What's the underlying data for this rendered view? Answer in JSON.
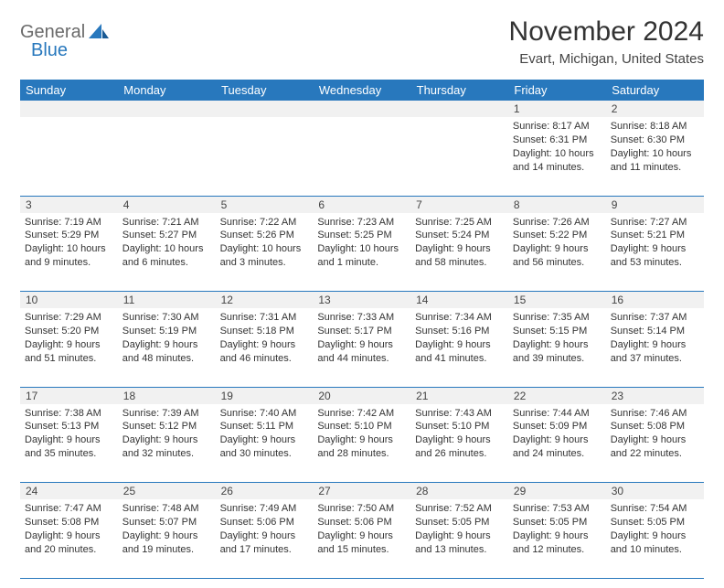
{
  "brand": {
    "part1": "General",
    "part2": "Blue"
  },
  "title": "November 2024",
  "location": "Evart, Michigan, United States",
  "columns": [
    "Sunday",
    "Monday",
    "Tuesday",
    "Wednesday",
    "Thursday",
    "Friday",
    "Saturday"
  ],
  "colors": {
    "header_bg": "#2878bd",
    "header_fg": "#ffffff",
    "daynum_bg": "#f1f1f1",
    "text": "#333333",
    "rule": "#2878bd"
  },
  "weeks": [
    [
      {
        "n": "",
        "sr": "",
        "ss": "",
        "d1": "",
        "d2": ""
      },
      {
        "n": "",
        "sr": "",
        "ss": "",
        "d1": "",
        "d2": ""
      },
      {
        "n": "",
        "sr": "",
        "ss": "",
        "d1": "",
        "d2": ""
      },
      {
        "n": "",
        "sr": "",
        "ss": "",
        "d1": "",
        "d2": ""
      },
      {
        "n": "",
        "sr": "",
        "ss": "",
        "d1": "",
        "d2": ""
      },
      {
        "n": "1",
        "sr": "Sunrise: 8:17 AM",
        "ss": "Sunset: 6:31 PM",
        "d1": "Daylight: 10 hours",
        "d2": "and 14 minutes."
      },
      {
        "n": "2",
        "sr": "Sunrise: 8:18 AM",
        "ss": "Sunset: 6:30 PM",
        "d1": "Daylight: 10 hours",
        "d2": "and 11 minutes."
      }
    ],
    [
      {
        "n": "3",
        "sr": "Sunrise: 7:19 AM",
        "ss": "Sunset: 5:29 PM",
        "d1": "Daylight: 10 hours",
        "d2": "and 9 minutes."
      },
      {
        "n": "4",
        "sr": "Sunrise: 7:21 AM",
        "ss": "Sunset: 5:27 PM",
        "d1": "Daylight: 10 hours",
        "d2": "and 6 minutes."
      },
      {
        "n": "5",
        "sr": "Sunrise: 7:22 AM",
        "ss": "Sunset: 5:26 PM",
        "d1": "Daylight: 10 hours",
        "d2": "and 3 minutes."
      },
      {
        "n": "6",
        "sr": "Sunrise: 7:23 AM",
        "ss": "Sunset: 5:25 PM",
        "d1": "Daylight: 10 hours",
        "d2": "and 1 minute."
      },
      {
        "n": "7",
        "sr": "Sunrise: 7:25 AM",
        "ss": "Sunset: 5:24 PM",
        "d1": "Daylight: 9 hours",
        "d2": "and 58 minutes."
      },
      {
        "n": "8",
        "sr": "Sunrise: 7:26 AM",
        "ss": "Sunset: 5:22 PM",
        "d1": "Daylight: 9 hours",
        "d2": "and 56 minutes."
      },
      {
        "n": "9",
        "sr": "Sunrise: 7:27 AM",
        "ss": "Sunset: 5:21 PM",
        "d1": "Daylight: 9 hours",
        "d2": "and 53 minutes."
      }
    ],
    [
      {
        "n": "10",
        "sr": "Sunrise: 7:29 AM",
        "ss": "Sunset: 5:20 PM",
        "d1": "Daylight: 9 hours",
        "d2": "and 51 minutes."
      },
      {
        "n": "11",
        "sr": "Sunrise: 7:30 AM",
        "ss": "Sunset: 5:19 PM",
        "d1": "Daylight: 9 hours",
        "d2": "and 48 minutes."
      },
      {
        "n": "12",
        "sr": "Sunrise: 7:31 AM",
        "ss": "Sunset: 5:18 PM",
        "d1": "Daylight: 9 hours",
        "d2": "and 46 minutes."
      },
      {
        "n": "13",
        "sr": "Sunrise: 7:33 AM",
        "ss": "Sunset: 5:17 PM",
        "d1": "Daylight: 9 hours",
        "d2": "and 44 minutes."
      },
      {
        "n": "14",
        "sr": "Sunrise: 7:34 AM",
        "ss": "Sunset: 5:16 PM",
        "d1": "Daylight: 9 hours",
        "d2": "and 41 minutes."
      },
      {
        "n": "15",
        "sr": "Sunrise: 7:35 AM",
        "ss": "Sunset: 5:15 PM",
        "d1": "Daylight: 9 hours",
        "d2": "and 39 minutes."
      },
      {
        "n": "16",
        "sr": "Sunrise: 7:37 AM",
        "ss": "Sunset: 5:14 PM",
        "d1": "Daylight: 9 hours",
        "d2": "and 37 minutes."
      }
    ],
    [
      {
        "n": "17",
        "sr": "Sunrise: 7:38 AM",
        "ss": "Sunset: 5:13 PM",
        "d1": "Daylight: 9 hours",
        "d2": "and 35 minutes."
      },
      {
        "n": "18",
        "sr": "Sunrise: 7:39 AM",
        "ss": "Sunset: 5:12 PM",
        "d1": "Daylight: 9 hours",
        "d2": "and 32 minutes."
      },
      {
        "n": "19",
        "sr": "Sunrise: 7:40 AM",
        "ss": "Sunset: 5:11 PM",
        "d1": "Daylight: 9 hours",
        "d2": "and 30 minutes."
      },
      {
        "n": "20",
        "sr": "Sunrise: 7:42 AM",
        "ss": "Sunset: 5:10 PM",
        "d1": "Daylight: 9 hours",
        "d2": "and 28 minutes."
      },
      {
        "n": "21",
        "sr": "Sunrise: 7:43 AM",
        "ss": "Sunset: 5:10 PM",
        "d1": "Daylight: 9 hours",
        "d2": "and 26 minutes."
      },
      {
        "n": "22",
        "sr": "Sunrise: 7:44 AM",
        "ss": "Sunset: 5:09 PM",
        "d1": "Daylight: 9 hours",
        "d2": "and 24 minutes."
      },
      {
        "n": "23",
        "sr": "Sunrise: 7:46 AM",
        "ss": "Sunset: 5:08 PM",
        "d1": "Daylight: 9 hours",
        "d2": "and 22 minutes."
      }
    ],
    [
      {
        "n": "24",
        "sr": "Sunrise: 7:47 AM",
        "ss": "Sunset: 5:08 PM",
        "d1": "Daylight: 9 hours",
        "d2": "and 20 minutes."
      },
      {
        "n": "25",
        "sr": "Sunrise: 7:48 AM",
        "ss": "Sunset: 5:07 PM",
        "d1": "Daylight: 9 hours",
        "d2": "and 19 minutes."
      },
      {
        "n": "26",
        "sr": "Sunrise: 7:49 AM",
        "ss": "Sunset: 5:06 PM",
        "d1": "Daylight: 9 hours",
        "d2": "and 17 minutes."
      },
      {
        "n": "27",
        "sr": "Sunrise: 7:50 AM",
        "ss": "Sunset: 5:06 PM",
        "d1": "Daylight: 9 hours",
        "d2": "and 15 minutes."
      },
      {
        "n": "28",
        "sr": "Sunrise: 7:52 AM",
        "ss": "Sunset: 5:05 PM",
        "d1": "Daylight: 9 hours",
        "d2": "and 13 minutes."
      },
      {
        "n": "29",
        "sr": "Sunrise: 7:53 AM",
        "ss": "Sunset: 5:05 PM",
        "d1": "Daylight: 9 hours",
        "d2": "and 12 minutes."
      },
      {
        "n": "30",
        "sr": "Sunrise: 7:54 AM",
        "ss": "Sunset: 5:05 PM",
        "d1": "Daylight: 9 hours",
        "d2": "and 10 minutes."
      }
    ]
  ]
}
